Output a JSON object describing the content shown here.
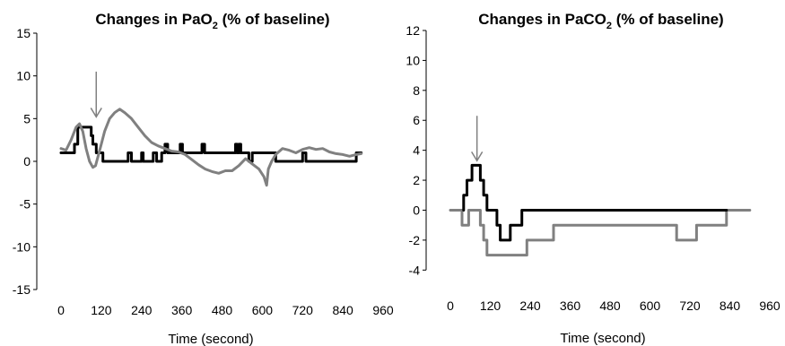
{
  "chart_data": [
    {
      "type": "line",
      "title_parts": {
        "pre": "Changes in PaO",
        "sub": "2",
        "post": " (% of baseline)"
      },
      "xlabel": "Time (second)",
      "ylabel": "",
      "xlim": [
        0,
        960
      ],
      "ylim": [
        -15,
        15
      ],
      "x_ticks": [
        0,
        120,
        240,
        360,
        480,
        600,
        720,
        840,
        960
      ],
      "y_ticks": [
        15,
        10,
        5,
        0,
        -5,
        -10,
        -15
      ],
      "grid": false,
      "legend": "none",
      "annotations": [
        {
          "type": "arrow",
          "x": 105,
          "y_start": 10.5,
          "y_end": 5.2
        }
      ],
      "series": [
        {
          "color": "#000000",
          "step": true,
          "points": [
            [
              0,
              1
            ],
            [
              40,
              1
            ],
            [
              40,
              2
            ],
            [
              50,
              2
            ],
            [
              50,
              4
            ],
            [
              90,
              4
            ],
            [
              90,
              3
            ],
            [
              95,
              3
            ],
            [
              95,
              2
            ],
            [
              105,
              2
            ],
            [
              105,
              1
            ],
            [
              125,
              1
            ],
            [
              125,
              0
            ],
            [
              200,
              0
            ],
            [
              200,
              1
            ],
            [
              210,
              1
            ],
            [
              210,
              0
            ],
            [
              240,
              0
            ],
            [
              240,
              1
            ],
            [
              245,
              1
            ],
            [
              245,
              0
            ],
            [
              275,
              0
            ],
            [
              275,
              1
            ],
            [
              285,
              1
            ],
            [
              285,
              0
            ],
            [
              300,
              0
            ],
            [
              300,
              1
            ],
            [
              310,
              1
            ],
            [
              310,
              2
            ],
            [
              318,
              2
            ],
            [
              318,
              1
            ],
            [
              355,
              1
            ],
            [
              355,
              2
            ],
            [
              362,
              2
            ],
            [
              362,
              1
            ],
            [
              420,
              1
            ],
            [
              420,
              2
            ],
            [
              428,
              2
            ],
            [
              428,
              1
            ],
            [
              520,
              1
            ],
            [
              520,
              2
            ],
            [
              525,
              2
            ],
            [
              525,
              1
            ],
            [
              530,
              1
            ],
            [
              530,
              2
            ],
            [
              536,
              2
            ],
            [
              536,
              1
            ],
            [
              560,
              1
            ],
            [
              560,
              0
            ],
            [
              570,
              0
            ],
            [
              570,
              1
            ],
            [
              640,
              1
            ],
            [
              640,
              0
            ],
            [
              720,
              0
            ],
            [
              720,
              1
            ],
            [
              730,
              1
            ],
            [
              730,
              0
            ],
            [
              880,
              0
            ],
            [
              880,
              1
            ],
            [
              895,
              1
            ]
          ]
        },
        {
          "color": "#808080",
          "step": false,
          "points": [
            [
              0,
              1.5
            ],
            [
              15,
              1.3
            ],
            [
              30,
              2.5
            ],
            [
              45,
              4
            ],
            [
              55,
              4.4
            ],
            [
              65,
              3.5
            ],
            [
              75,
              1.5
            ],
            [
              85,
              0
            ],
            [
              95,
              -0.7
            ],
            [
              103,
              -0.5
            ],
            [
              110,
              0.5
            ],
            [
              120,
              2
            ],
            [
              130,
              3.5
            ],
            [
              145,
              5
            ],
            [
              160,
              5.7
            ],
            [
              175,
              6.1
            ],
            [
              190,
              5.7
            ],
            [
              210,
              5
            ],
            [
              230,
              4
            ],
            [
              250,
              3
            ],
            [
              270,
              2.2
            ],
            [
              290,
              1.8
            ],
            [
              310,
              1.5
            ],
            [
              330,
              1.2
            ],
            [
              350,
              1.1
            ],
            [
              370,
              0.8
            ],
            [
              390,
              0.2
            ],
            [
              410,
              -0.4
            ],
            [
              430,
              -0.9
            ],
            [
              450,
              -1.2
            ],
            [
              470,
              -1.4
            ],
            [
              490,
              -1.1
            ],
            [
              510,
              -1.1
            ],
            [
              530,
              -0.5
            ],
            [
              550,
              0.3
            ],
            [
              560,
              0
            ],
            [
              570,
              -0.3
            ],
            [
              590,
              -0.9
            ],
            [
              605,
              -1.8
            ],
            [
              613,
              -2.8
            ],
            [
              618,
              -0.9
            ],
            [
              628,
              0
            ],
            [
              640,
              0.8
            ],
            [
              660,
              1.5
            ],
            [
              680,
              1.3
            ],
            [
              700,
              1
            ],
            [
              720,
              1.4
            ],
            [
              740,
              1.6
            ],
            [
              760,
              1.4
            ],
            [
              780,
              1.5
            ],
            [
              800,
              1.1
            ],
            [
              820,
              0.9
            ],
            [
              840,
              0.8
            ],
            [
              860,
              0.6
            ],
            [
              880,
              0.8
            ],
            [
              895,
              0.9
            ]
          ]
        }
      ]
    },
    {
      "type": "line",
      "title_parts": {
        "pre": "Changes in PaCO",
        "sub": "2",
        "post": " (% of baseline)"
      },
      "xlabel": "Time (second)",
      "ylabel": "",
      "xlim": [
        0,
        960
      ],
      "ylim": [
        -5,
        12
      ],
      "x_ticks": [
        0,
        120,
        240,
        360,
        480,
        600,
        720,
        840,
        960
      ],
      "y_ticks": [
        12,
        10,
        8,
        6,
        4,
        2,
        0,
        -2,
        -4
      ],
      "grid": false,
      "legend": "none",
      "annotations": [
        {
          "type": "arrow",
          "x": 80,
          "y_start": 6.3,
          "y_end": 3.3
        }
      ],
      "series": [
        {
          "color": "#808080",
          "step": true,
          "points": [
            [
              0,
              0
            ],
            [
              35,
              0
            ],
            [
              35,
              -1
            ],
            [
              55,
              -1
            ],
            [
              55,
              0
            ],
            [
              90,
              0
            ],
            [
              90,
              -1
            ],
            [
              100,
              -1
            ],
            [
              100,
              -2
            ],
            [
              110,
              -2
            ],
            [
              110,
              -3
            ],
            [
              230,
              -3
            ],
            [
              230,
              -2
            ],
            [
              310,
              -2
            ],
            [
              310,
              -1
            ],
            [
              680,
              -1
            ],
            [
              680,
              -2
            ],
            [
              740,
              -2
            ],
            [
              740,
              -1
            ],
            [
              830,
              -1
            ],
            [
              830,
              0
            ],
            [
              900,
              0
            ]
          ]
        },
        {
          "color": "#000000",
          "step": true,
          "points": [
            [
              40,
              0
            ],
            [
              40,
              1
            ],
            [
              50,
              1
            ],
            [
              50,
              2
            ],
            [
              65,
              2
            ],
            [
              65,
              3
            ],
            [
              90,
              3
            ],
            [
              90,
              2
            ],
            [
              100,
              2
            ],
            [
              100,
              1
            ],
            [
              110,
              1
            ],
            [
              110,
              0
            ],
            [
              140,
              0
            ],
            [
              140,
              -1
            ],
            [
              150,
              -1
            ],
            [
              150,
              -2
            ],
            [
              180,
              -2
            ],
            [
              180,
              -1
            ],
            [
              215,
              -1
            ],
            [
              215,
              0
            ],
            [
              830,
              0
            ]
          ]
        }
      ]
    }
  ]
}
